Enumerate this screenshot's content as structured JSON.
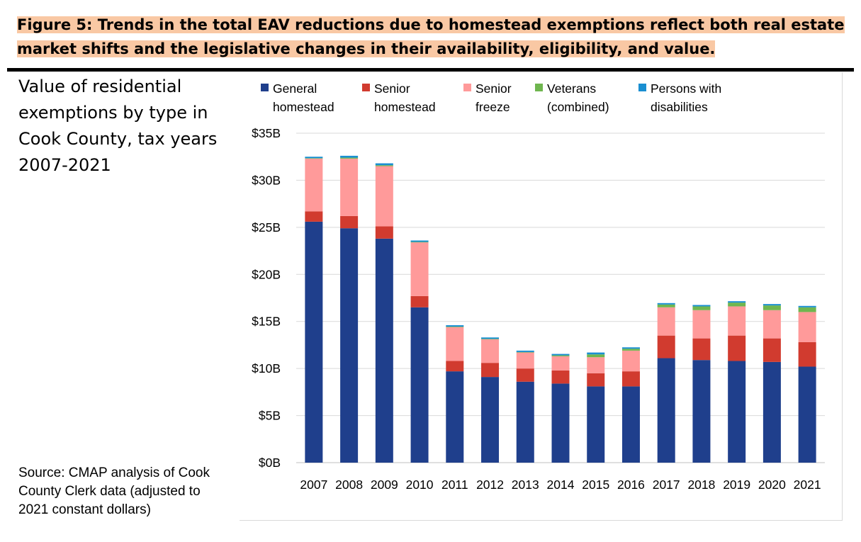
{
  "figure": {
    "title_line1": "Figure 5: Trends in the total EAV reductions due to homestead exemptions reflect both real estate",
    "title_line2": "market shifts and the legislative changes in their availability, eligibility, and value.",
    "highlight_color": "#f9c8a4"
  },
  "subtitle": "Value of residential exemptions by type in Cook County, tax years 2007-2021",
  "source": "Source: CMAP analysis of Cook County Clerk data (adjusted to 2021 constant dollars)",
  "legend": [
    {
      "label": "General\nhomestead",
      "color": "#1f3f8c"
    },
    {
      "label": "Senior\nhomestead",
      "color": "#d13b2f"
    },
    {
      "label": "Senior\nfreeze",
      "color": "#ff9a9a"
    },
    {
      "label": "Veterans\n(combined)",
      "color": "#6fb64f"
    },
    {
      "label": "Persons with\ndisabilities",
      "color": "#1a8fd1"
    }
  ],
  "chart_data": {
    "type": "bar",
    "stacked": true,
    "title": "",
    "xlabel": "",
    "ylabel": "",
    "ylim": [
      0,
      35
    ],
    "ytick_labels": [
      "$0B",
      "$5B",
      "$10B",
      "$15B",
      "$20B",
      "$25B",
      "$30B",
      "$35B"
    ],
    "grid": true,
    "legend_position": "top",
    "categories": [
      "2007",
      "2008",
      "2009",
      "2010",
      "2011",
      "2012",
      "2013",
      "2014",
      "2015",
      "2016",
      "2017",
      "2018",
      "2019",
      "2020",
      "2021"
    ],
    "series": [
      {
        "name": "General homestead",
        "color": "#1f3f8c",
        "values": [
          25.6,
          24.9,
          23.8,
          16.5,
          9.7,
          9.1,
          8.6,
          8.4,
          8.1,
          8.1,
          11.1,
          10.9,
          10.8,
          10.7,
          10.2
        ]
      },
      {
        "name": "Senior homestead",
        "color": "#d13b2f",
        "values": [
          1.1,
          1.3,
          1.3,
          1.2,
          1.1,
          1.5,
          1.4,
          1.4,
          1.4,
          1.6,
          2.4,
          2.3,
          2.7,
          2.5,
          2.6
        ]
      },
      {
        "name": "Senior freeze",
        "color": "#ff9a9a",
        "values": [
          5.6,
          6.1,
          6.4,
          5.7,
          3.6,
          2.5,
          1.7,
          1.5,
          1.7,
          2.2,
          3.0,
          3.0,
          3.1,
          3.0,
          3.2
        ]
      },
      {
        "name": "Veterans (combined)",
        "color": "#6fb64f",
        "values": [
          0.05,
          0.1,
          0.1,
          0.05,
          0.05,
          0.05,
          0.05,
          0.1,
          0.3,
          0.2,
          0.3,
          0.4,
          0.4,
          0.5,
          0.5
        ]
      },
      {
        "name": "Persons with disabilities",
        "color": "#1a8fd1",
        "values": [
          0.15,
          0.2,
          0.2,
          0.15,
          0.15,
          0.15,
          0.15,
          0.15,
          0.2,
          0.15,
          0.15,
          0.15,
          0.15,
          0.15,
          0.15
        ]
      }
    ]
  }
}
